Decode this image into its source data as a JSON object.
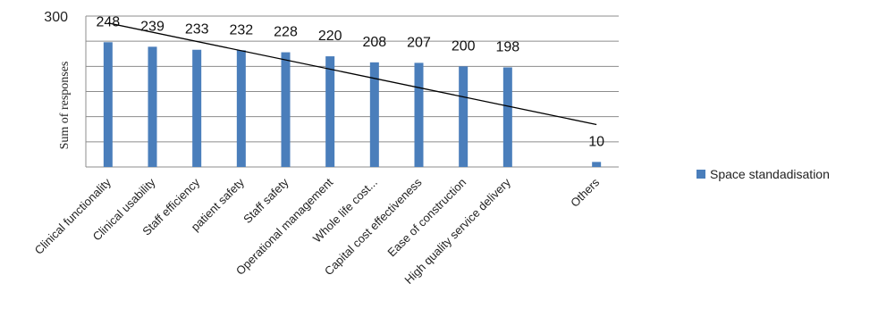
{
  "chart_data": {
    "type": "bar",
    "categories": [
      "Clinical functionality",
      "Clinical usability",
      "Staff efficiency",
      "patient safety",
      "Staff safety",
      "Operational management",
      "Whole life cost...",
      "Capital cost effectiveness",
      "Ease of construction",
      "High quality service delivery",
      "",
      "Others"
    ],
    "series": [
      {
        "name": "Space standadisation",
        "values": [
          248,
          239,
          233,
          232,
          228,
          220,
          208,
          207,
          200,
          198,
          0,
          10
        ],
        "color": "#4a7ebb"
      }
    ],
    "data_labels": [
      "248",
      "239",
      "233",
      "232",
      "228",
      "220",
      "208",
      "207",
      "200",
      "198",
      "",
      "10"
    ],
    "trendline": {
      "type": "linear",
      "color": "#000000"
    },
    "ylabel": "Sum of responses",
    "xlabel": "",
    "ylim": [
      0,
      300
    ],
    "y_ticks_shown": [
      "300"
    ],
    "grid": true,
    "legend_position": "right"
  }
}
